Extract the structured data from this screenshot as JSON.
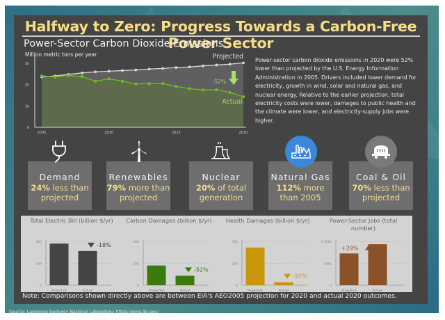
{
  "title": "Halfway to Zero: Progress Towards a Carbon-Free Power Sector",
  "emissions_section": {
    "title": "Power-Sector Carbon Dioxide Emissions",
    "description": "Power-sector carbon dioxide emissions in 2020 were 52% lower than projected by the U.S. Energy Information Administration in 2005. Drivers included lower demand for electricity, growth in wind, solar and natural gas, and nuclear energy. Relative to the earlier projection, total electricity costs were lower, damages to public health and the climate were lower, and electricity-supply jobs were higher."
  },
  "chart_data": [
    {
      "type": "line",
      "title": "Power-Sector Carbon Dioxide Emissions",
      "ylabel": "Million metric tons per year",
      "xlabel": "",
      "x": [
        2005,
        2006,
        2007,
        2008,
        2009,
        2010,
        2011,
        2012,
        2013,
        2014,
        2015,
        2016,
        2017,
        2018,
        2019,
        2020
      ],
      "xticks": [
        "2005",
        "2010",
        "2015",
        "2020"
      ],
      "yticks": [
        "0",
        "1k",
        "2k",
        "3k"
      ],
      "ylim": [
        0,
        3000
      ],
      "series": [
        {
          "name": "Projected",
          "color": "#d9d9d9",
          "values": [
            2360,
            2410,
            2480,
            2550,
            2600,
            2630,
            2660,
            2690,
            2730,
            2760,
            2800,
            2830,
            2880,
            2920,
            2960,
            3020
          ]
        },
        {
          "name": "Actual",
          "color": "#6fbf1f",
          "values": [
            2410,
            2360,
            2430,
            2380,
            2160,
            2270,
            2160,
            2030,
            2050,
            2050,
            1920,
            1810,
            1750,
            1760,
            1630,
            1430
          ]
        }
      ],
      "annotation": "-52%",
      "series_labels": {
        "projected": "Projected",
        "actual": "Actual"
      }
    },
    {
      "type": "bar",
      "title": "Total Electric Bill (billion $/yr)",
      "categories": [
        "Projected",
        "Actual"
      ],
      "values": [
        475,
        390
      ],
      "yticks": [
        "0",
        "250",
        "500"
      ],
      "ylim": [
        0,
        500
      ],
      "color": "#444444",
      "annotation": "-18%",
      "annotation_direction": "down"
    },
    {
      "type": "bar",
      "title": "Carbon Damages (billion $/yr)",
      "categories": [
        "Projected",
        "Actual"
      ],
      "values": [
        225,
        108
      ],
      "yticks": [
        "0",
        "250",
        "500"
      ],
      "ylim": [
        0,
        500
      ],
      "color": "#3d7a0e",
      "annotation": "-52%",
      "annotation_direction": "down"
    },
    {
      "type": "bar",
      "title": "Health Damages (billion $/yr)",
      "categories": [
        "Projected",
        "Actual"
      ],
      "values": [
        430,
        34
      ],
      "yticks": [
        "0",
        "250",
        "500"
      ],
      "ylim": [
        0,
        500
      ],
      "color": "#c9960a",
      "annotation": "-92%",
      "annotation_direction": "down"
    },
    {
      "type": "bar",
      "title": "Power-Sector Jobs (total number)",
      "categories": [
        "Projected",
        "Actual"
      ],
      "values": [
        725000,
        935000
      ],
      "yticks": [
        "0",
        "500k",
        "1 000k"
      ],
      "ylim": [
        0,
        1000000
      ],
      "color": "#8a5226",
      "annotation": "+29%",
      "annotation_direction": "up"
    }
  ],
  "drivers": [
    {
      "name": "Demand",
      "stat_bold": "24%",
      "stat_rest": " less than projected",
      "icon": "plug-icon",
      "color": "#3d7a0e"
    },
    {
      "name": "Renewables",
      "stat_bold": "79%",
      "stat_rest": " more than projected",
      "icon": "wind-turbine-icon",
      "color": "#3d7a0e"
    },
    {
      "name": "Nuclear",
      "stat_bold": "20%",
      "stat_rest": " of total generation",
      "icon": "cooling-tower-icon",
      "color": "#3d7a0e"
    },
    {
      "name": "Natural Gas",
      "stat_bold": "112%",
      "stat_rest": " more than 2005",
      "icon": "factory-icon",
      "color": "#3b87d8"
    },
    {
      "name": "Coal & Oil",
      "stat_bold": "70%",
      "stat_rest": " less than projected",
      "icon": "coal-car-icon",
      "color": "#7a7a7a"
    }
  ],
  "note": "Note: Comparisons shown directly above are between EIA's AEO2005 projection for 2020 and actual 2020 outcomes.",
  "source": "Source: Lawrence Berkeley National Laboratory: https://emp.lbl.gov/"
}
